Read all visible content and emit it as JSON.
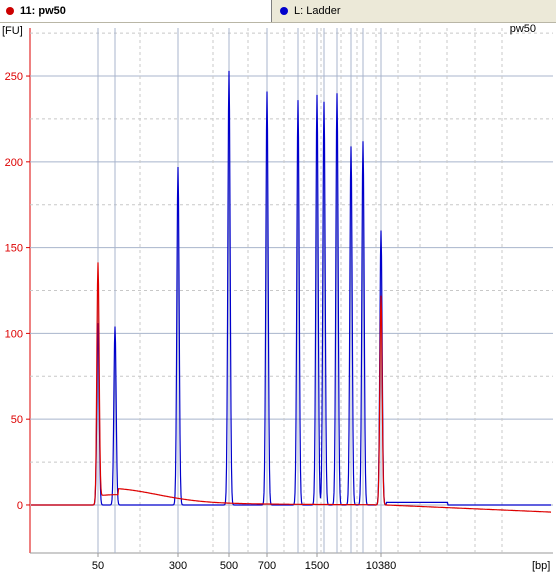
{
  "tabs": [
    {
      "label": "11: pw50",
      "color": "#cc0000"
    },
    {
      "label": "L: Ladder",
      "color": "#0000cc"
    }
  ],
  "chart_data": {
    "type": "line",
    "title": "pw50",
    "ylabel": "[FU]",
    "xlabel": "[bp]",
    "ylim": [
      -28,
      278
    ],
    "yticks": [
      0,
      50,
      100,
      150,
      200,
      250
    ],
    "xtick_labels": [
      "50",
      "300",
      "500",
      "700",
      "1500",
      "10380"
    ],
    "grid": true,
    "series": [
      {
        "name": "11: pw50",
        "color": "#dd0000",
        "peaks": [
          {
            "bp": "50",
            "height": 136
          },
          {
            "bp": "10380",
            "height": 122
          }
        ],
        "baseline": 0
      },
      {
        "name": "L: Ladder",
        "color": "#0000cc",
        "peaks": [
          {
            "bp": "50",
            "height": 106
          },
          {
            "bp": "",
            "height": 104
          },
          {
            "bp": "300",
            "height": 197
          },
          {
            "bp": "500",
            "height": 253
          },
          {
            "bp": "700",
            "height": 241
          },
          {
            "bp": "",
            "height": 236
          },
          {
            "bp": "1500",
            "height": 239
          },
          {
            "bp": "",
            "height": 235
          },
          {
            "bp": "",
            "height": 240
          },
          {
            "bp": "",
            "height": 209
          },
          {
            "bp": "",
            "height": 212
          },
          {
            "bp": "10380",
            "height": 160
          }
        ],
        "baseline": 0
      }
    ]
  }
}
